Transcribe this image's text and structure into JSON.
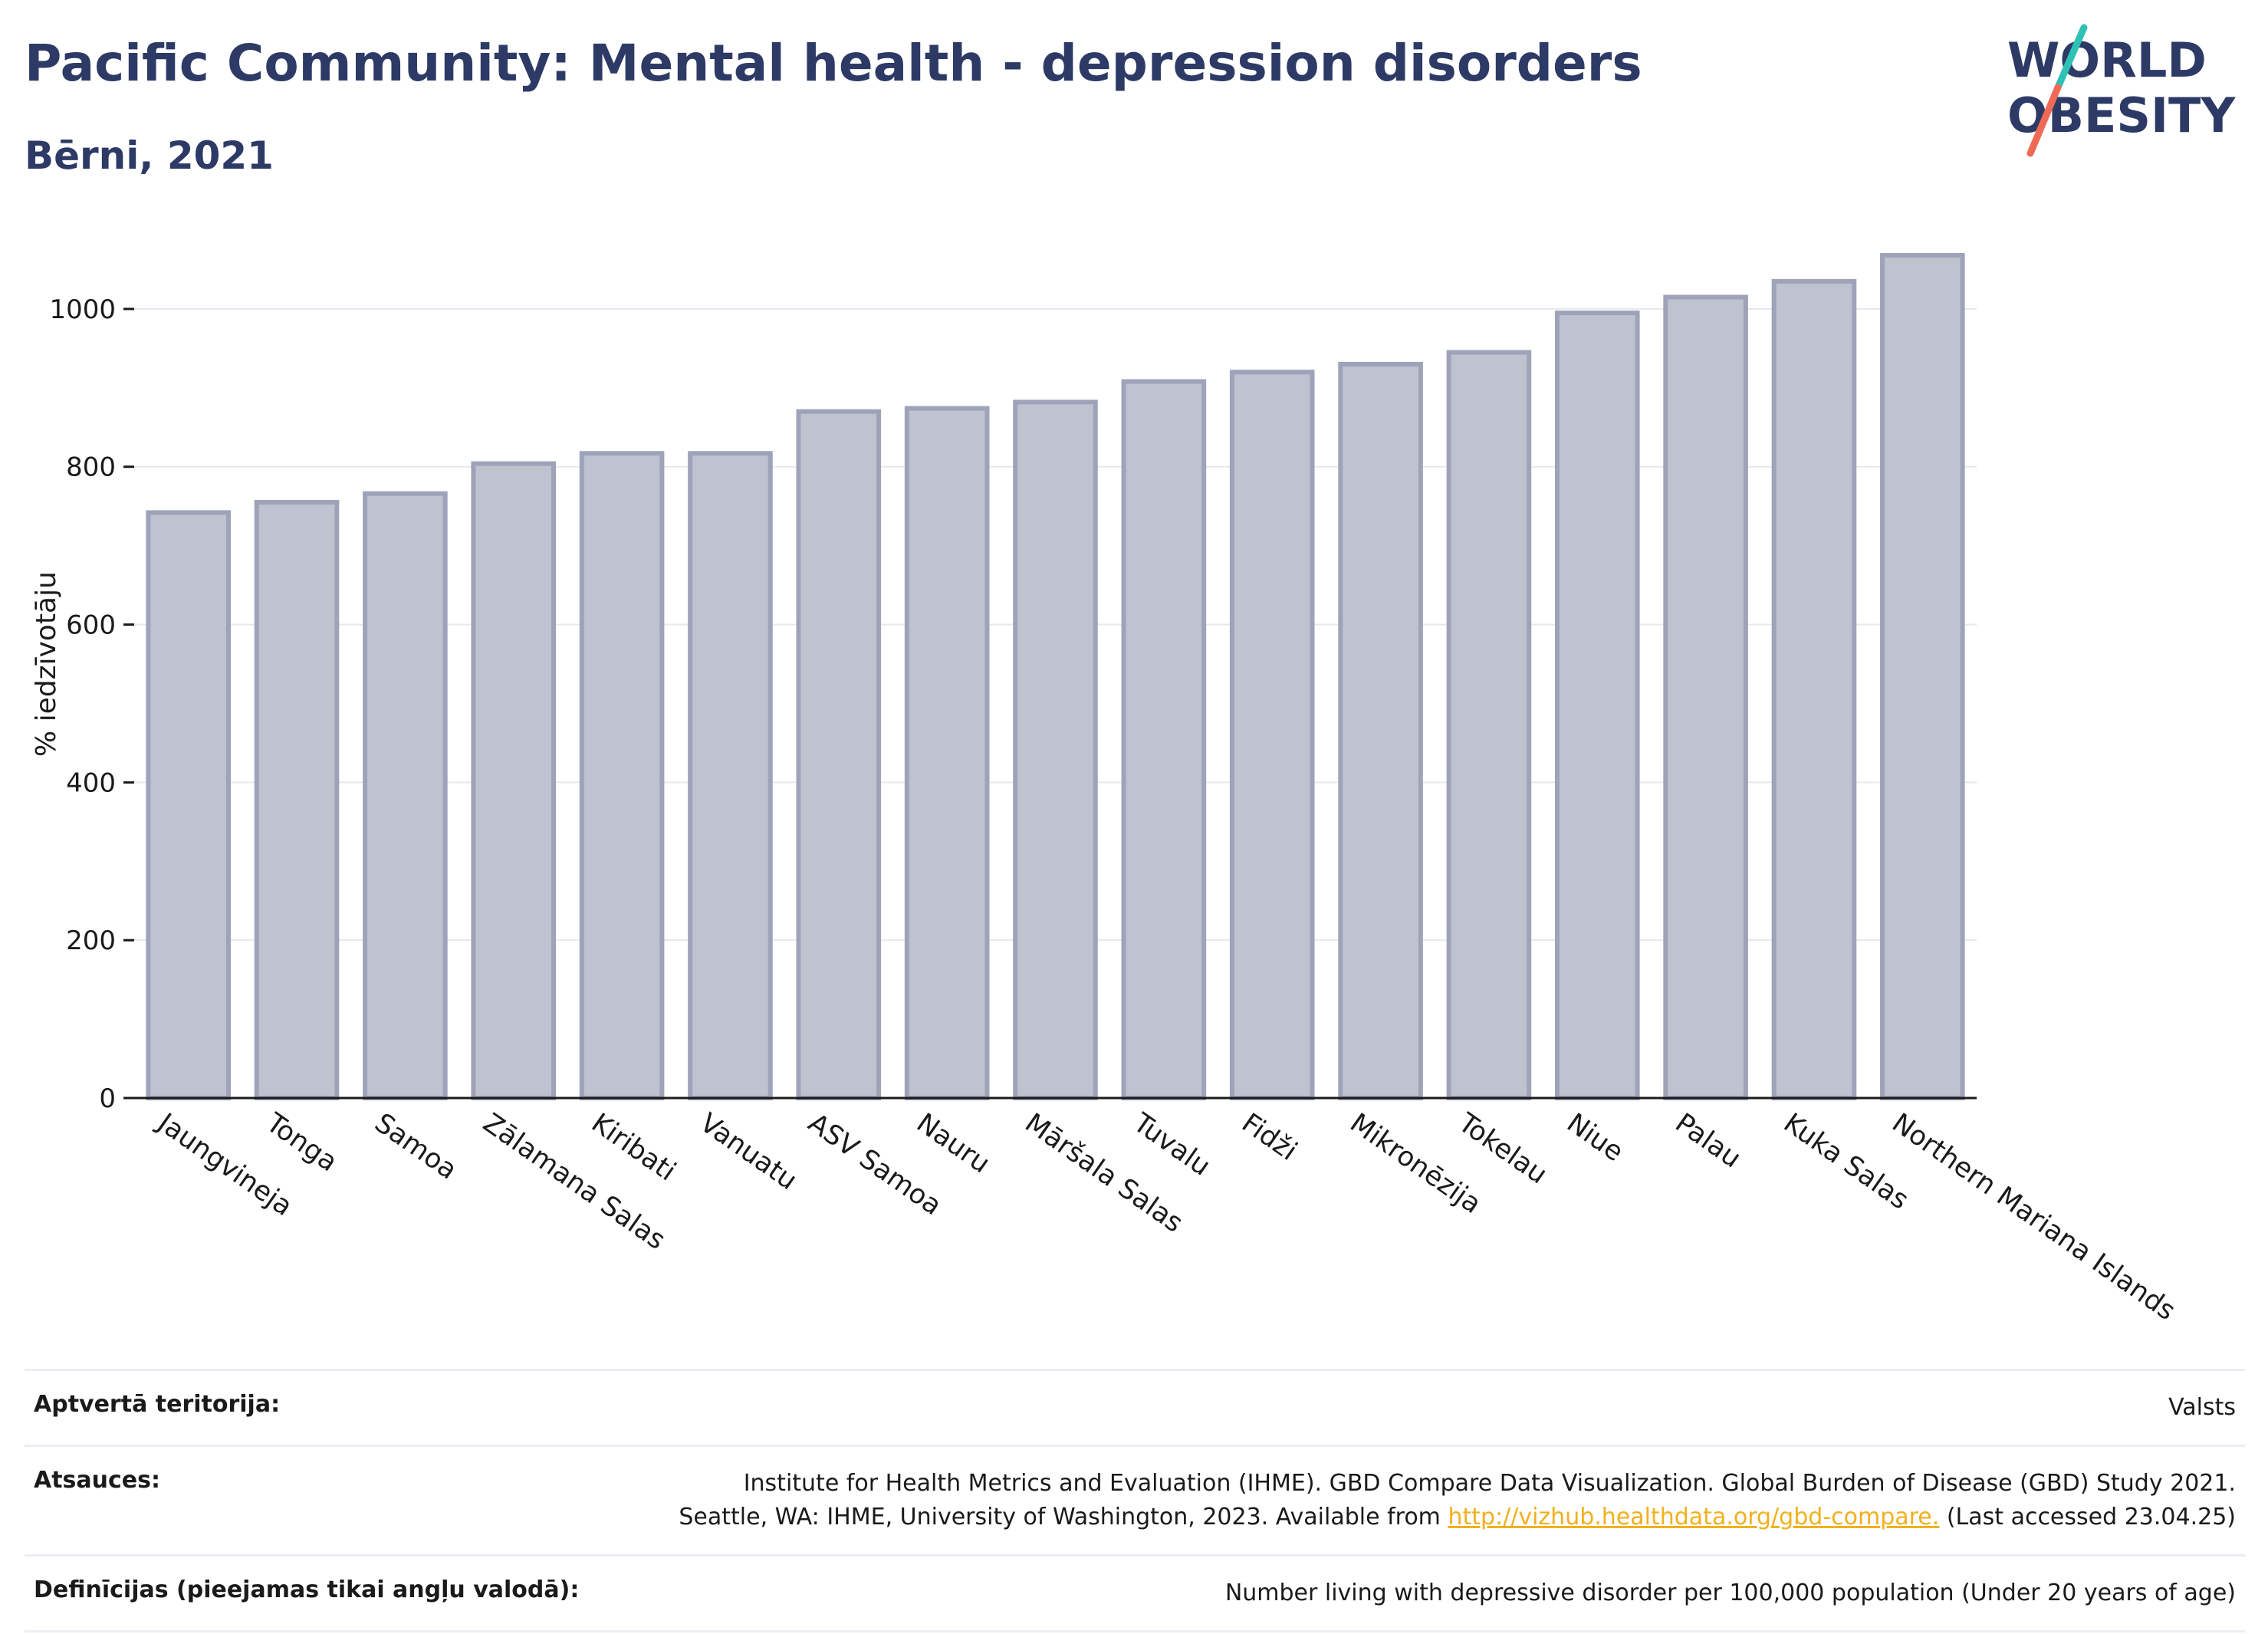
{
  "header": {
    "title": "Pacific Community: Mental health - depression disorders",
    "subtitle": "Bērni, 2021"
  },
  "logo": {
    "line1": "WORLD",
    "line2": "OBESITY",
    "accent_colors": [
      "#2fc1b5",
      "#ef6a55"
    ],
    "text_color": "#2d3a66"
  },
  "chart_data": {
    "type": "bar",
    "ylabel": "% iedzīvotāju",
    "ylim": [
      0,
      1100
    ],
    "yticks": [
      0,
      200,
      400,
      600,
      800,
      1000
    ],
    "grid": true,
    "bar_color": "#bfc2cf",
    "bar_edge_color": "#9ea3ba",
    "categories": [
      "Jaungvineja",
      "Tonga",
      "Samoa",
      "Zālamana Salas",
      "Kiribati",
      "Vanuatu",
      "ASV Samoa",
      "Nauru",
      "Māršala Salas",
      "Tuvalu",
      "Fidži",
      "Mikronēzija",
      "Tokelau",
      "Niue",
      "Palau",
      "Kuka Salas",
      "Northern Mariana Islands"
    ],
    "values": [
      742,
      755,
      766,
      804,
      817,
      817,
      870,
      874,
      882,
      908,
      920,
      930,
      945,
      995,
      1015,
      1035,
      1068
    ]
  },
  "meta": {
    "coverage_label": "Aptvertā teritorija:",
    "coverage_value": "Valsts",
    "sources_label": "Atsauces:",
    "sources_line1": "Institute for Health Metrics and Evaluation (IHME). GBD Compare Data Visualization. Global Burden of Disease (GBD) Study 2021.",
    "sources_line2_pre": "Seattle, WA: IHME, University of Washington, 2023. Available from ",
    "sources_link": "http://vizhub.healthdata.org/gbd-compare.",
    "sources_line2_post": " (Last accessed 23.04.25)",
    "definitions_label": "Definīcijas (pieejamas tikai angļu valodā):",
    "definitions_value": "Number living with depressive disorder per 100,000 population (Under 20 years of age)"
  }
}
